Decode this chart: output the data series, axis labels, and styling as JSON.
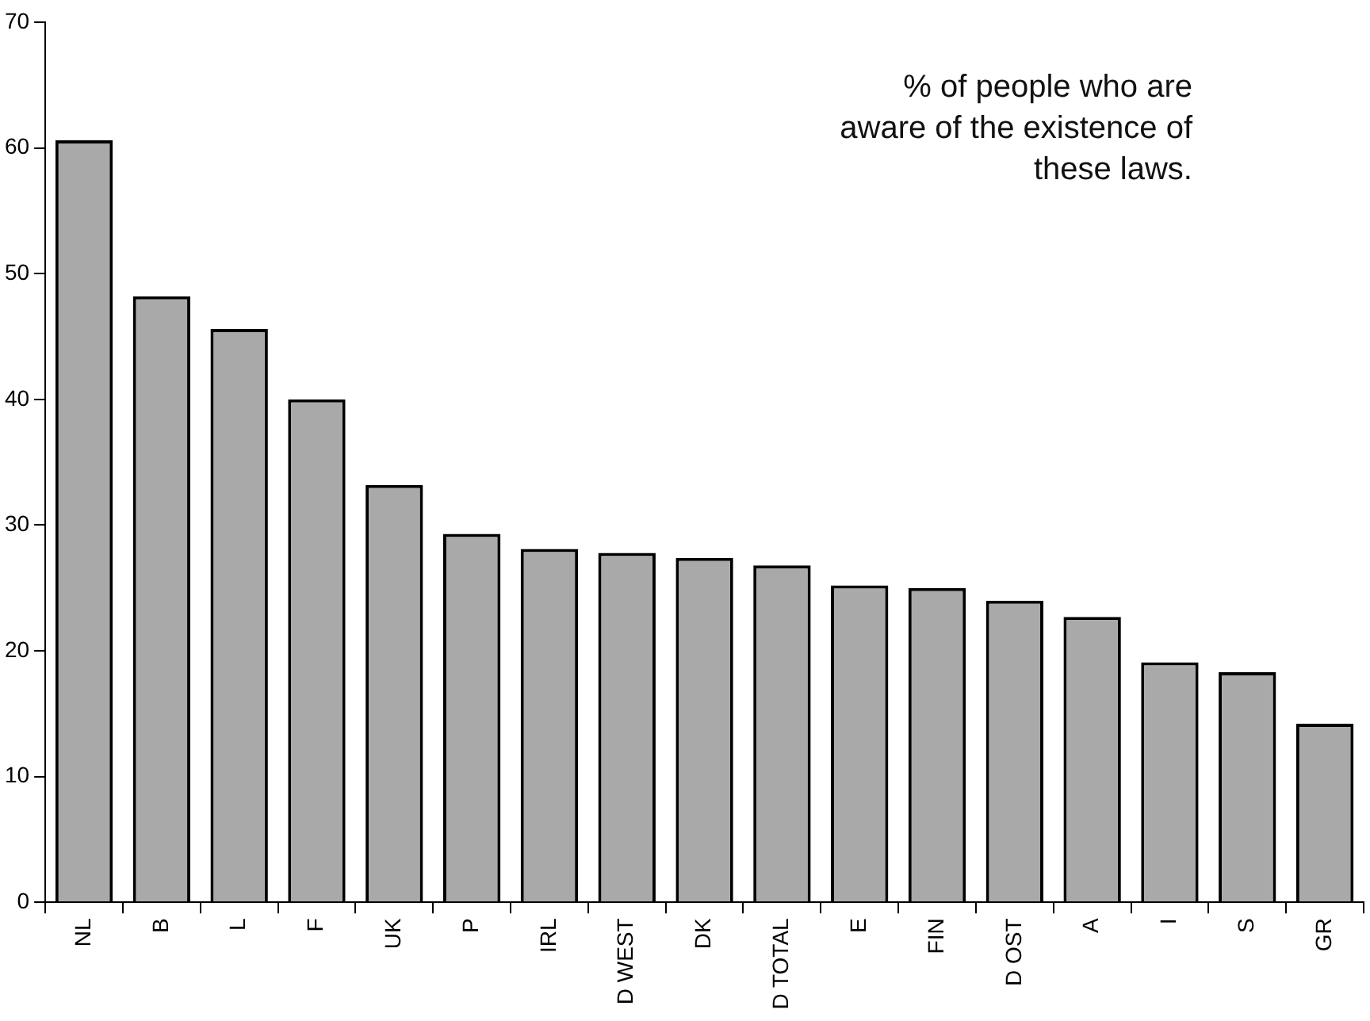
{
  "chart_data": {
    "type": "bar",
    "categories": [
      "NL",
      "B",
      "L",
      "F",
      "UK",
      "P",
      "IRL",
      "D WEST",
      "DK",
      "D TOTAL",
      "E",
      "FIN",
      "D OST",
      "A",
      "I",
      "S",
      "GR"
    ],
    "values": [
      60.6,
      48.2,
      45.6,
      40,
      33.2,
      29.3,
      28.1,
      27.8,
      27.4,
      26.8,
      25.2,
      25.0,
      24.0,
      22.7,
      19.1,
      18.3,
      14.2
    ],
    "color": "#a9a9a9",
    "ylim": [
      0,
      70
    ],
    "yticks": [
      0,
      10,
      20,
      30,
      40,
      50,
      60,
      70
    ],
    "grid": false,
    "annotations": [
      "% of people who are aware of the existence of these laws."
    ]
  }
}
